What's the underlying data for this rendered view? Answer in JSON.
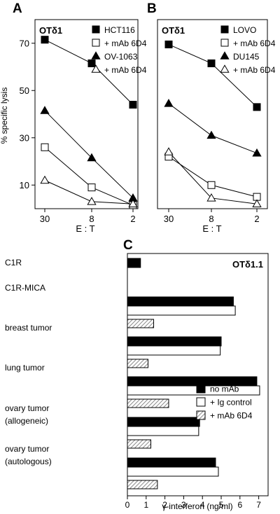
{
  "chart_data": [
    {
      "panel": "A",
      "type": "line",
      "inset_title": "OTδ1",
      "ylabel": "% specific lysis",
      "xlabel": "E : T",
      "x": [
        30,
        8,
        2
      ],
      "x_tick_labels": [
        "30",
        "8",
        "2"
      ],
      "y_ticks": [
        10,
        30,
        50,
        70
      ],
      "ylim": [
        0,
        80
      ],
      "grid": false,
      "legend_position": "top-right",
      "series": [
        {
          "name": "HCT116",
          "marker": "filled-square",
          "values": [
            71.5,
            61.5,
            44
          ]
        },
        {
          "name": "+ mAb 6D4",
          "marker": "open-square",
          "values": [
            26,
            9,
            1.5
          ]
        },
        {
          "name": "OV-1063",
          "marker": "filled-triangle",
          "values": [
            41.5,
            21.5,
            4.5
          ]
        },
        {
          "name": "+ mAb 6D4",
          "marker": "open-triangle",
          "values": [
            12,
            3,
            2
          ]
        }
      ]
    },
    {
      "panel": "B",
      "type": "line",
      "inset_title": "OTδ1",
      "ylabel": "",
      "xlabel": "E : T",
      "x": [
        30,
        8,
        2
      ],
      "x_tick_labels": [
        "30",
        "8",
        "2"
      ],
      "ylim": [
        0,
        80
      ],
      "grid": false,
      "legend_position": "top-right",
      "series": [
        {
          "name": "LOVO",
          "marker": "filled-square",
          "values": [
            69.5,
            61.5,
            43
          ]
        },
        {
          "name": "+ mAb 6D4",
          "marker": "open-square",
          "values": [
            22,
            10,
            5
          ]
        },
        {
          "name": "DU145",
          "marker": "filled-triangle",
          "values": [
            44.5,
            31,
            23.5
          ]
        },
        {
          "name": "+ mAb 6D4",
          "marker": "open-triangle",
          "values": [
            24,
            4.5,
            2
          ]
        }
      ]
    },
    {
      "panel": "C",
      "type": "bar",
      "orientation": "horizontal",
      "inset_title": "OTδ1.1",
      "xlabel": "γ-interferon (ng/ml)",
      "x_ticks": [
        0,
        1,
        2,
        3,
        4,
        5,
        6,
        7
      ],
      "xlim": [
        0,
        7.5
      ],
      "grid": false,
      "legend_position": "bottom-right",
      "categories": [
        [
          "C1R"
        ],
        [
          "C1R-MICA"
        ],
        [
          "breast tumor"
        ],
        [
          "lung tumor"
        ],
        [
          "ovary tumor",
          "(allogeneic)"
        ],
        [
          "ovary tumor",
          "(autologous)"
        ]
      ],
      "series": [
        {
          "name": "no mAb",
          "style": "filled",
          "values": [
            0.7,
            5.65,
            5.0,
            6.9,
            3.85,
            4.7
          ]
        },
        {
          "name": "+ Ig control",
          "style": "open",
          "values": [
            null,
            5.75,
            4.95,
            7.05,
            3.8,
            4.85
          ]
        },
        {
          "name": "+ mAb 6D4",
          "style": "hatched",
          "values": [
            null,
            1.4,
            1.1,
            2.2,
            1.25,
            1.6
          ]
        }
      ]
    }
  ],
  "colors": {
    "ink": "#000000",
    "paper": "#ffffff",
    "hatch": "#8a8a8a"
  }
}
